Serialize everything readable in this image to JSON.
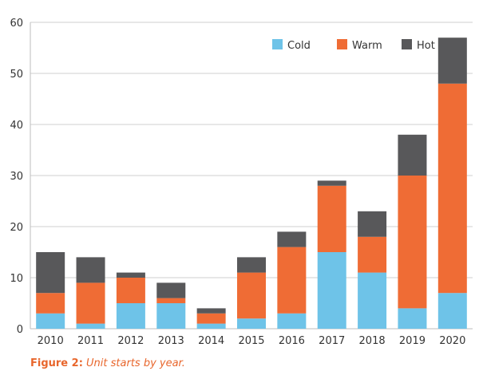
{
  "chart_data": {
    "type": "bar",
    "stacked": true,
    "categories": [
      "2010",
      "2011",
      "2012",
      "2013",
      "2014",
      "2015",
      "2016",
      "2017",
      "2018",
      "2019",
      "2020"
    ],
    "series": [
      {
        "name": "Cold",
        "color": "#6ec3e8",
        "values": [
          3,
          1,
          5,
          5,
          1,
          2,
          3,
          15,
          11,
          4,
          7
        ]
      },
      {
        "name": "Warm",
        "color": "#ef6c35",
        "values": [
          4,
          8,
          5,
          1,
          2,
          9,
          13,
          13,
          7,
          26,
          41
        ]
      },
      {
        "name": "Hot",
        "color": "#58585a",
        "values": [
          8,
          5,
          1,
          3,
          1,
          3,
          3,
          1,
          5,
          8,
          9
        ]
      }
    ],
    "ylim": [
      0,
      60
    ],
    "yticks": [
      "0",
      "10",
      "20",
      "30",
      "40",
      "50",
      "60"
    ],
    "grid": true,
    "legend_position": "top-right"
  },
  "caption": {
    "label": "Figure 2:",
    "text": "Unit starts by year."
  }
}
